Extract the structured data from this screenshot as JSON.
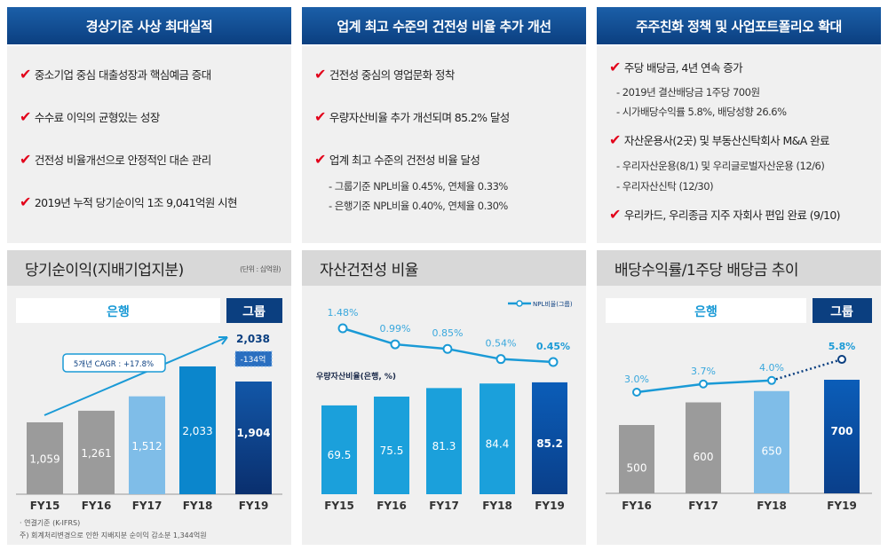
{
  "colors": {
    "header": "#0b3f80",
    "check": "#e2001a",
    "gray_bar": "#9b9b9b",
    "light_blue": "#7fbde8",
    "mid_blue": "#0b86cc",
    "dark_blue": "#0d3f8c",
    "cyan": "#1ba0db",
    "line": "#1a9ad6"
  },
  "col1": {
    "title": "경상기준 사상 최대실적",
    "bullets": [
      "중소기업 중심 대출성장과 핵심예금 증대",
      "수수료 이익의 균형있는 성장",
      "건전성 비율개선으로 안정적인 대손 관리",
      "2019년 누적 당기순이익 1조 9,041억원 시현"
    ],
    "section": "당기순이익(지배기업지분)",
    "unit": "(단위 : 십억원)",
    "tab_bank": "은행",
    "tab_group": "그룹",
    "cagr": "5개년 CAGR : +17.8%",
    "footnotes": [
      "· 연결기준 (K-IFRS)",
      "주) 회계처리변경으로 인한 지배지분 순이익 감소분 1,344억원"
    ]
  },
  "col2": {
    "title": "업계 최고 수준의 건전성 비율 추가 개선",
    "bullets": [
      "건전성 중심의 영업문화 정착",
      "우량자산비율 추가 개선되며 85.2% 달성",
      "업계 최고 수준의 건전성 비율 달성"
    ],
    "subs": [
      "- 그룹기준 NPL비율 0.45%, 연체율 0.33%",
      "- 은행기준 NPL비율 0.40%, 연체율  0.30%"
    ],
    "section": "자산건전성 비율"
  },
  "col3": {
    "title": "주주친화 정책 및 사업포트폴리오 확대",
    "bullets": [
      "주당 배당금, 4년 연속 증가",
      "자산운용사(2곳) 및 부동산신탁회사 M&A  완료",
      "우리카드, 우리종금 지주 자회사 편입 완료 (9/10)"
    ],
    "subs": [
      "- 2019년 결산배당금 1주당 700원",
      "- 시가배당수익률 5.8%, 배당성향 26.6%",
      "- 우리자산운용(8/1) 및 우리글로벌자산운용 (12/6)",
      "- 우리자산신탁 (12/30)"
    ],
    "section": "배당수익률/1주당 배당금 추이",
    "tab_bank": "은행",
    "tab_group": "그룹"
  },
  "chart_data": [
    {
      "type": "bar",
      "title": "당기순이익(지배기업지분)",
      "categories": [
        "FY15",
        "FY16",
        "FY17",
        "FY18",
        "FY19"
      ],
      "values": [
        1059,
        1261,
        1512,
        2033,
        1904
      ],
      "labels": [
        "1,059",
        "1,261",
        "1,512",
        "2,033",
        "1,904"
      ],
      "fy19_total": "2,038",
      "fy19_adjustment": "-134억"
    },
    {
      "type": "bar+line",
      "categories": [
        "FY15",
        "FY16",
        "FY17",
        "FY18",
        "FY19"
      ],
      "bar_series": {
        "name": "우량자산비율(은행, %)",
        "values": [
          69.5,
          75.5,
          81.3,
          84.4,
          85.2
        ],
        "labels": [
          "69.5",
          "75.5",
          "81.3",
          "84.4",
          "85.2"
        ]
      },
      "line_series": {
        "name": "NPL비율(그룹)",
        "values": [
          1.48,
          0.99,
          0.85,
          0.54,
          0.45
        ],
        "labels": [
          "1.48%",
          "0.99%",
          "0.85%",
          "0.54%",
          "0.45%"
        ]
      }
    },
    {
      "type": "bar+line",
      "categories": [
        "FY16",
        "FY17",
        "FY18",
        "FY19"
      ],
      "bar_series": {
        "values": [
          500,
          600,
          650,
          700
        ],
        "labels": [
          "500",
          "600",
          "650",
          "700"
        ]
      },
      "line_series": {
        "values": [
          3.0,
          3.7,
          4.0,
          5.8
        ],
        "labels": [
          "3.0%",
          "3.7%",
          "4.0%",
          "5.8%"
        ]
      }
    }
  ]
}
